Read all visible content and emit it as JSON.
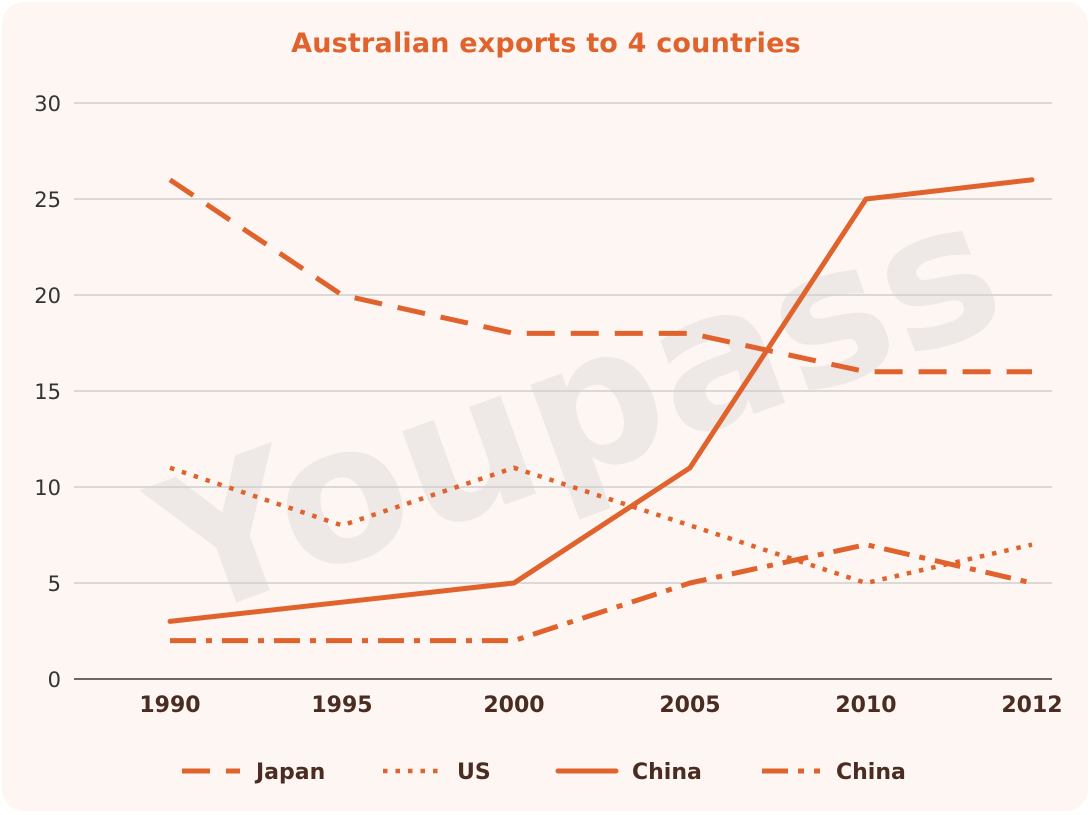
{
  "chart_data": {
    "type": "line",
    "title": "Australian exports to 4 countries",
    "xlabel": "",
    "ylabel": "",
    "categories": [
      "1990",
      "1995",
      "2000",
      "2005",
      "2010",
      "2012"
    ],
    "y_ticks": [
      "0",
      "5",
      "10",
      "15",
      "20",
      "25",
      "30"
    ],
    "ylim": [
      0,
      30
    ],
    "grid": "horizontal",
    "legend_position": "bottom",
    "color": "#e0622c",
    "series": [
      {
        "name": "Japan",
        "style": "dashed",
        "values": [
          26,
          20,
          18,
          18,
          16,
          16
        ]
      },
      {
        "name": "US",
        "style": "dotted",
        "values": [
          11,
          8,
          11,
          8,
          5,
          7
        ]
      },
      {
        "name": "China",
        "style": "solid",
        "values": [
          3,
          4,
          5,
          11,
          25,
          26
        ]
      },
      {
        "name": "China",
        "style": "dash-dot",
        "values": [
          2,
          2,
          2,
          5,
          7,
          5
        ]
      }
    ]
  },
  "watermark": {
    "text": "Youpass"
  }
}
